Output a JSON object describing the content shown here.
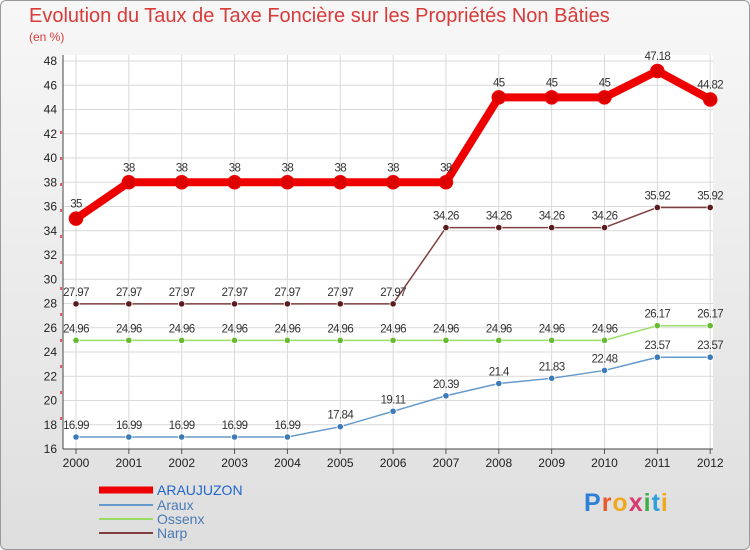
{
  "chart_data": {
    "type": "line",
    "title": "Evolution du Taux de Taxe Foncière sur les Propriétés Non Bâties",
    "ylabel": "(en %)",
    "xlabel": "",
    "categories": [
      "2000",
      "2001",
      "2002",
      "2003",
      "2004",
      "2005",
      "2006",
      "2007",
      "2008",
      "2009",
      "2010",
      "2011",
      "2012"
    ],
    "ylim": [
      16,
      48
    ],
    "yticks": [
      "16",
      "18",
      "20",
      "22",
      "24",
      "26",
      "28",
      "30",
      "32",
      "34",
      "36",
      "38",
      "40",
      "42",
      "44",
      "46",
      "48"
    ],
    "grid": true,
    "legend_position": "bottom-left",
    "series": [
      {
        "name": "ARAUJUZON",
        "color": "#ee0000",
        "marker": "#cc0000",
        "values": [
          35,
          38,
          38,
          38,
          38,
          38,
          38,
          38,
          45,
          45,
          45,
          47.18,
          44.82
        ],
        "labels": [
          "35",
          "38",
          "38",
          "38",
          "38",
          "38",
          "38",
          "38",
          "45",
          "45",
          "45",
          "47.18",
          "44.82"
        ]
      },
      {
        "name": "Araux",
        "color": "#6699cc",
        "marker": "#3d7ab8",
        "values": [
          16.99,
          16.99,
          16.99,
          16.99,
          16.99,
          17.84,
          19.11,
          20.39,
          21.4,
          21.83,
          22.48,
          23.57,
          23.57
        ],
        "labels": [
          "16.99",
          "16.99",
          "16.99",
          "16.99",
          "16.99",
          "17.84",
          "19.11",
          "20.39",
          "21.4",
          "21.83",
          "22.48",
          "23.57",
          "23.57"
        ]
      },
      {
        "name": "Ossenx",
        "color": "#99dd66",
        "marker": "#66bb33",
        "values": [
          24.96,
          24.96,
          24.96,
          24.96,
          24.96,
          24.96,
          24.96,
          24.96,
          24.96,
          24.96,
          24.96,
          26.17,
          26.17
        ],
        "labels": [
          "24.96",
          "24.96",
          "24.96",
          "24.96",
          "24.96",
          "24.96",
          "24.96",
          "24.96",
          "24.96",
          "24.96",
          "24.96",
          "26.17",
          "26.17"
        ]
      },
      {
        "name": "Narp",
        "color": "#804040",
        "marker": "#5a1c1c",
        "values": [
          27.97,
          27.97,
          27.97,
          27.97,
          27.97,
          27.97,
          27.97,
          34.26,
          34.26,
          34.26,
          34.26,
          35.92,
          35.92
        ],
        "labels": [
          "27.97",
          "27.97",
          "27.97",
          "27.97",
          "27.97",
          "27.97",
          "27.97",
          "34.26",
          "34.26",
          "34.26",
          "34.26",
          "35.92",
          "35.92"
        ]
      }
    ]
  },
  "logo": {
    "letters": [
      "P",
      "r",
      "o",
      "x",
      "i",
      "t",
      "i"
    ]
  }
}
